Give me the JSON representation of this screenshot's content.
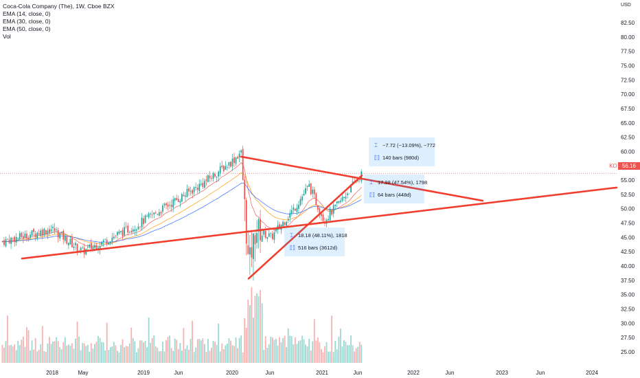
{
  "legend": {
    "title": "Coca-Cola Company (The), 1W, Cboe BZX",
    "indicators": [
      "EMA (14, close, 0)",
      "EMA (30, close, 0)",
      "EMA (50, close, 0)",
      "Vol"
    ]
  },
  "currency_label": "USD",
  "price_tag": {
    "symbol": "KO",
    "value": "56.16"
  },
  "measures": [
    {
      "change": "−7.72 (−13.09%), −772",
      "bars": "140 bars (980d)"
    },
    {
      "change": "17.98 (47.54%), 1798",
      "bars": "64 bars (448d)"
    },
    {
      "change": "18.18 (48.11%), 1818",
      "bars": "516 bars (3612d)"
    }
  ],
  "colors": {
    "up": "#26a69a",
    "down": "#ef5350",
    "trend": "#f23e2e",
    "ema14": "#ef5350",
    "ema30": "#ff9800",
    "ema50": "#2962ff",
    "measure_bg": "#2196f3"
  },
  "chart_data": {
    "type": "candlestick",
    "title": "Coca-Cola Company (The), 1W, Cboe BZX",
    "y_axis": {
      "position": "right",
      "ticks": [
        25.0,
        27.5,
        30.0,
        32.5,
        35.0,
        37.5,
        40.0,
        42.5,
        45.0,
        47.5,
        50.0,
        52.5,
        55.0,
        57.5,
        60.0,
        62.5,
        65.0,
        67.5,
        70.0,
        72.5,
        75.0,
        77.5,
        80.0,
        82.5
      ],
      "tick_labels": [
        "25.00",
        "27.50",
        "30.00",
        "32.50",
        "35.00",
        "37.50",
        "40.00",
        "42.50",
        "45.00",
        "47.50",
        "50.00",
        "52.50",
        "55.00",
        "57.50",
        "60.00",
        "62.50",
        "65.00",
        "67.50",
        "70.00",
        "72.50",
        "75.00",
        "77.50",
        "80.00",
        "82.50"
      ],
      "range": [
        23.5,
        84.0
      ]
    },
    "x_axis": {
      "tick_labels": [
        "2018",
        "May",
        "2019",
        "Jun",
        "2020",
        "Jun",
        "2021",
        "Jun",
        "2022",
        "Jun",
        "2023",
        "Jun",
        "2024"
      ]
    },
    "last_price": 56.16,
    "key_points": [
      {
        "date": "2018-01",
        "close": 46.5
      },
      {
        "date": "2018-05",
        "close": 42.5
      },
      {
        "date": "2018-12",
        "close": 47.0
      },
      {
        "date": "2019-06",
        "close": 52.0
      },
      {
        "date": "2019-09",
        "close": 54.5
      },
      {
        "date": "2020-01",
        "close": 58.5
      },
      {
        "date": "2020-02",
        "close": 60.0
      },
      {
        "date": "2020-03",
        "close": 40.0
      },
      {
        "date": "2020-04",
        "close": 46.5
      },
      {
        "date": "2020-06",
        "close": 45.0
      },
      {
        "date": "2020-09",
        "close": 50.0
      },
      {
        "date": "2020-11",
        "close": 54.0
      },
      {
        "date": "2021-01",
        "close": 48.0
      },
      {
        "date": "2021-03",
        "close": 51.0
      },
      {
        "date": "2021-06",
        "close": 56.16
      }
    ],
    "trend_lines": [
      {
        "from": {
          "date": "2017-09",
          "price": 41.3
        },
        "to": {
          "date": "2024-06",
          "price": 53.7
        }
      },
      {
        "from": {
          "date": "2020-02",
          "price": 59.1
        },
        "to": {
          "date": "2022-10",
          "price": 51.4
        }
      },
      {
        "from": {
          "date": "2020-03",
          "price": 37.8
        },
        "to": {
          "date": "2021-06",
          "price": 55.8
        }
      }
    ],
    "volume_panel": true,
    "grid": false
  }
}
